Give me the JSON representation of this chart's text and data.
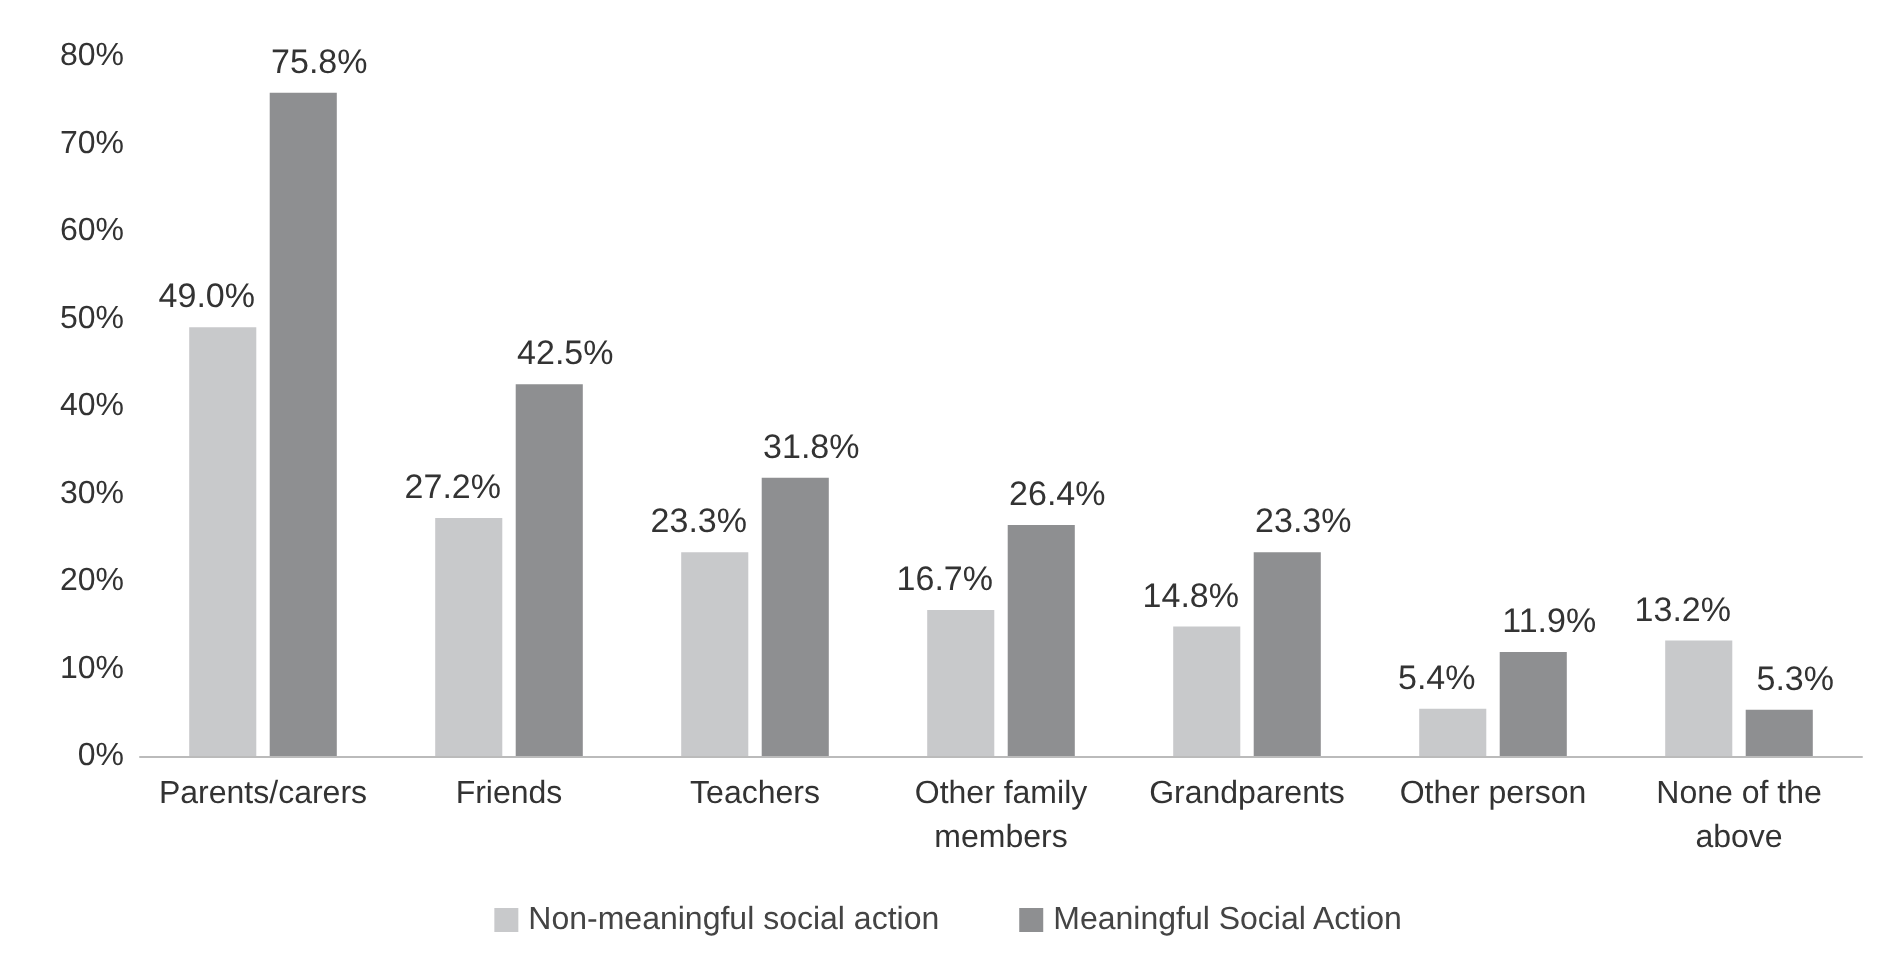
{
  "chart_data": {
    "type": "bar",
    "categories": [
      "Parents/carers",
      "Friends",
      "Teachers",
      "Other family\nmembers",
      "Grandparents",
      "Other person",
      "None of the\nabove"
    ],
    "series": [
      {
        "name": "Non-meaningful social action",
        "color": "#c8c9cb",
        "values": [
          49.0,
          27.2,
          23.3,
          16.7,
          14.8,
          5.4,
          13.2
        ],
        "value_labels": [
          "49.0%",
          "27.2%",
          "23.3%",
          "16.7%",
          "14.8%",
          "5.4%",
          "13.2%"
        ]
      },
      {
        "name": "Meaningful Social Action",
        "color": "#8e8f91",
        "values": [
          75.8,
          42.5,
          31.8,
          26.4,
          23.3,
          11.9,
          5.3
        ],
        "value_labels": [
          "75.8%",
          "42.5%",
          "31.8%",
          "26.4%",
          "23.3%",
          "11.9%",
          "5.3%"
        ]
      }
    ],
    "ylim": [
      0,
      80
    ],
    "yticks": [
      {
        "value": 0,
        "label": "0%"
      },
      {
        "value": 10,
        "label": "10%"
      },
      {
        "value": 20,
        "label": "20%"
      },
      {
        "value": 30,
        "label": "30%"
      },
      {
        "value": 40,
        "label": "40%"
      },
      {
        "value": 50,
        "label": "50%"
      },
      {
        "value": 60,
        "label": "60%"
      },
      {
        "value": 70,
        "label": "70%"
      },
      {
        "value": 80,
        "label": "80%"
      }
    ],
    "grid": false,
    "legend": "bottom"
  }
}
